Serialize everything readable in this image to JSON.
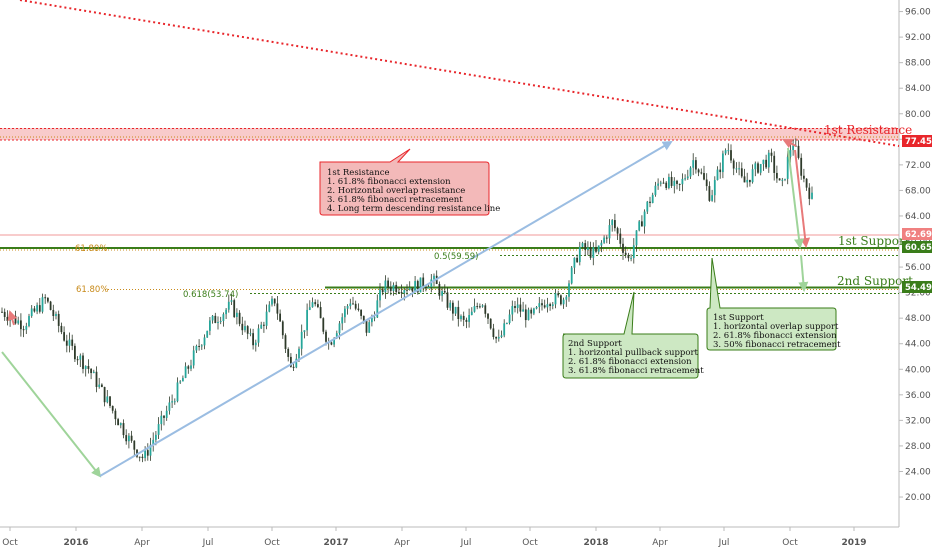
{
  "chart_data": {
    "type": "candlestick",
    "y_axis": {
      "ticks": [
        "96.00",
        "92.00",
        "88.00",
        "84.00",
        "80.00",
        "76.00",
        "72.00",
        "68.00",
        "64.00",
        "60.00",
        "56.00",
        "52.00",
        "48.00",
        "44.00",
        "40.00",
        "36.00",
        "32.00",
        "28.00",
        "24.00",
        "20.00"
      ],
      "range": [
        17.5,
        100
      ]
    },
    "x_axis": {
      "ticks": [
        "Oct",
        "2016",
        "Apr",
        "Jul",
        "Oct",
        "2017",
        "Apr",
        "Jul",
        "Oct",
        "2018",
        "Apr",
        "Jul",
        "Oct",
        "2019"
      ],
      "bold_ticks": [
        "2016",
        "2017",
        "2018",
        "2019"
      ]
    },
    "price_path": [
      [
        0,
        49
      ],
      [
        4,
        47
      ],
      [
        8,
        51
      ],
      [
        12,
        44
      ],
      [
        16,
        40
      ],
      [
        20,
        34
      ],
      [
        24,
        28
      ],
      [
        26,
        26
      ],
      [
        30,
        33
      ],
      [
        34,
        40
      ],
      [
        38,
        47
      ],
      [
        42,
        50
      ],
      [
        46,
        44
      ],
      [
        50,
        51
      ],
      [
        53,
        40
      ],
      [
        57,
        51
      ],
      [
        60,
        44
      ],
      [
        64,
        51
      ],
      [
        67,
        46
      ],
      [
        70,
        53
      ],
      [
        73,
        53
      ],
      [
        76,
        53
      ],
      [
        79,
        54
      ],
      [
        82,
        50
      ],
      [
        85,
        47
      ],
      [
        88,
        51
      ],
      [
        91,
        44
      ],
      [
        94,
        50
      ],
      [
        97,
        48
      ],
      [
        100,
        51
      ],
      [
        103,
        51
      ],
      [
        106,
        59
      ],
      [
        109,
        58
      ],
      [
        112,
        63
      ],
      [
        115,
        57
      ],
      [
        118,
        65
      ],
      [
        121,
        70
      ],
      [
        124,
        68
      ],
      [
        127,
        73
      ],
      [
        130,
        67
      ],
      [
        133,
        75
      ],
      [
        136,
        69
      ],
      [
        139,
        72
      ],
      [
        141,
        73
      ],
      [
        143,
        68
      ],
      [
        145,
        76
      ],
      [
        147,
        70
      ],
      [
        149,
        66
      ]
    ],
    "levels": {
      "first_resistance": 77.45,
      "first_support": 60.65,
      "second_support": 54.49,
      "last_price": 62.69
    },
    "labels": {
      "first_resistance": "1st Resistance",
      "first_support": "1st Support",
      "second_support": "2nd Support"
    },
    "price_tags": [
      "77.45",
      "62.69",
      "60.65",
      "54.49"
    ],
    "fib_labels": {
      "fib_618_upper": "61.80%",
      "fib_618_lower": "61.80%",
      "fib_05": "0.5(59.59)",
      "fib_0618": "0.618(53.74)"
    },
    "annotations": {
      "resistance_box": [
        "1st Resistance",
        "1. 61.8% fibonacci extension",
        "2. Horizontal overlap resistance",
        "3. 61.8% fibonacci retracement",
        "4. Long term descending resistance line"
      ],
      "support2_box": [
        "2nd Support",
        "1. horizontal pullback support",
        "2. 61.8% fibonacci extension",
        "3. 61.8% fibonacci retracement"
      ],
      "support1_box": [
        "1st Support",
        "1. horizontal overlap support",
        "2. 61.8% fibonacci extension",
        "3. 50% fibonacci retracement"
      ]
    },
    "colors": {
      "up": "#26a69a",
      "down": "#ef5350",
      "candle_body": "#2e3a2a",
      "resistance": "#e8262b",
      "support": "#3a7d1a",
      "fib": "#c88a1a",
      "blue_arrow": "#9bbde2",
      "green_arrow": "#9fd49a",
      "red_arrow": "#e87a7a"
    },
    "grid": false
  }
}
